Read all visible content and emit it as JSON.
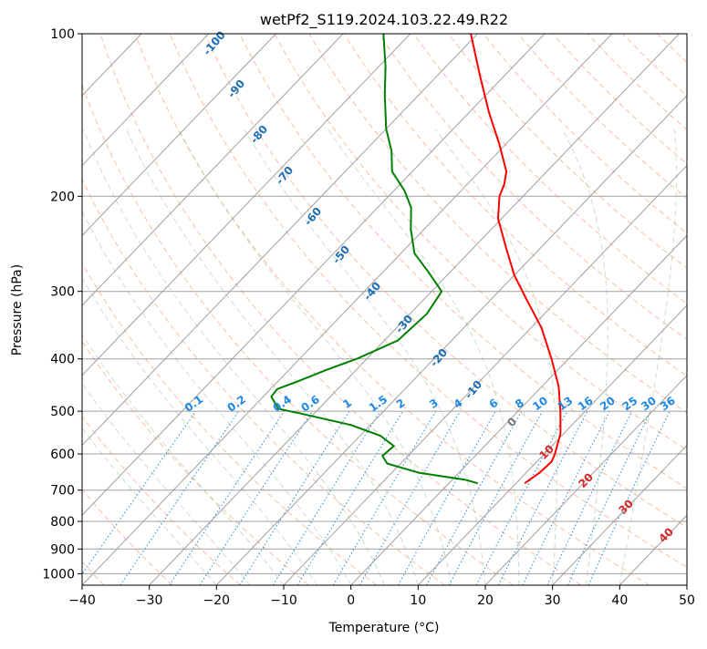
{
  "chart_data": {
    "type": "line",
    "chart_kind": "skew-T log-p diagram",
    "title": "wetPf2_S119.2024.103.22.49.R22",
    "xlabel": "Temperature (°C)",
    "ylabel": "Pressure (hPa)",
    "xlim": [
      -40,
      50
    ],
    "ylim": [
      1050,
      100
    ],
    "y_scale": "log",
    "x_ticks": [
      -40,
      -30,
      -20,
      -10,
      0,
      10,
      20,
      30,
      40,
      50
    ],
    "x_tick_labels": [
      "−40",
      "−30",
      "−20",
      "−10",
      "0",
      "10",
      "20",
      "30",
      "40",
      "50"
    ],
    "y_ticks": [
      100,
      200,
      300,
      400,
      500,
      600,
      700,
      800,
      900,
      1000
    ],
    "y_tick_labels": [
      "100",
      "200",
      "300",
      "400",
      "500",
      "600",
      "700",
      "800",
      "900",
      "1000"
    ],
    "grid": true,
    "series": [
      {
        "color": "#ff0000",
        "points": [
          {
            "p": 680,
            "t": 11.3
          },
          {
            "p": 650,
            "t": 12.0
          },
          {
            "p": 620,
            "t": 12.2
          },
          {
            "p": 600,
            "t": 11.6
          },
          {
            "p": 550,
            "t": 9.5
          },
          {
            "p": 500,
            "t": 6.3
          },
          {
            "p": 450,
            "t": 2.5
          },
          {
            "p": 400,
            "t": -2.5
          },
          {
            "p": 350,
            "t": -8.5
          },
          {
            "p": 310,
            "t": -14.8
          },
          {
            "p": 280,
            "t": -20.0
          },
          {
            "p": 250,
            "t": -25.0
          },
          {
            "p": 220,
            "t": -30.5
          },
          {
            "p": 200,
            "t": -33.5
          },
          {
            "p": 190,
            "t": -34.5
          },
          {
            "p": 180,
            "t": -36.0
          },
          {
            "p": 160,
            "t": -41.0
          },
          {
            "p": 140,
            "t": -47.0
          },
          {
            "p": 120,
            "t": -53.5
          },
          {
            "p": 100,
            "t": -61.0
          }
        ]
      },
      {
        "color": "#008000",
        "points": [
          {
            "p": 680,
            "t": 4.3
          },
          {
            "p": 670,
            "t": 2.0
          },
          {
            "p": 650,
            "t": -6.0
          },
          {
            "p": 625,
            "t": -12.0
          },
          {
            "p": 605,
            "t": -13.8
          },
          {
            "p": 580,
            "t": -13.5
          },
          {
            "p": 555,
            "t": -17.0
          },
          {
            "p": 530,
            "t": -23.0
          },
          {
            "p": 505,
            "t": -32.0
          },
          {
            "p": 495,
            "t": -36.0
          },
          {
            "p": 470,
            "t": -38.8
          },
          {
            "p": 455,
            "t": -39.0
          },
          {
            "p": 440,
            "t": -37.0
          },
          {
            "p": 420,
            "t": -34.5
          },
          {
            "p": 400,
            "t": -31.5
          },
          {
            "p": 370,
            "t": -28.0
          },
          {
            "p": 330,
            "t": -27.5
          },
          {
            "p": 300,
            "t": -28.5
          },
          {
            "p": 275,
            "t": -33.5
          },
          {
            "p": 255,
            "t": -38.0
          },
          {
            "p": 230,
            "t": -42.0
          },
          {
            "p": 210,
            "t": -45.0
          },
          {
            "p": 195,
            "t": -48.5
          },
          {
            "p": 180,
            "t": -53.0
          },
          {
            "p": 165,
            "t": -56.0
          },
          {
            "p": 150,
            "t": -60.0
          },
          {
            "p": 130,
            "t": -65.0
          },
          {
            "p": 115,
            "t": -69.0
          },
          {
            "p": 100,
            "t": -74.0
          }
        ]
      }
    ],
    "mixing_ratio_labels": [
      "0.1",
      "0.2",
      "0.4",
      "0.6",
      "1",
      "1.5",
      "2",
      "3",
      "4",
      "6",
      "8",
      "10",
      "13",
      "16",
      "20",
      "25",
      "30",
      "36"
    ],
    "dry_adiabat_labels": [
      "-100",
      "-90",
      "-80",
      "-70",
      "-60",
      "-50",
      "-40",
      "-30",
      "-20",
      "-10"
    ],
    "moist_adiabat_labels": [
      "0",
      "10",
      "20",
      "30",
      "40"
    ],
    "colors": {
      "temperature": "#ff0000",
      "dewpoint": "#008000",
      "mixing_ratio": "#1e88e5",
      "dry_adiabat_label": "#1f6fb4",
      "moist_adiabat_label": "#d62728",
      "zero_label": "#777777"
    }
  }
}
